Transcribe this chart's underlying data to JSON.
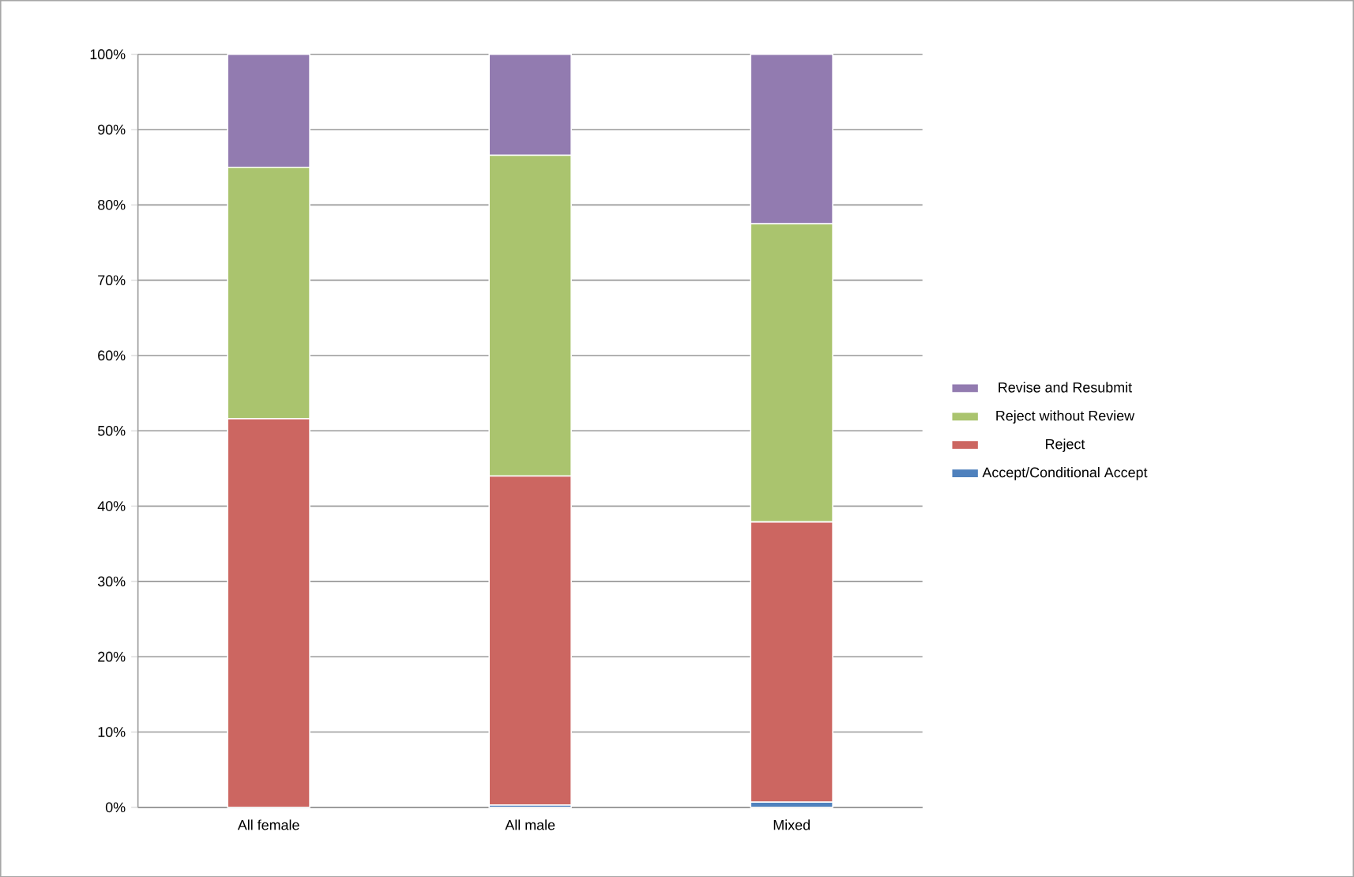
{
  "chart_data": {
    "type": "bar",
    "stacked": true,
    "categories": [
      "All female",
      "All male",
      "Mixed"
    ],
    "series": [
      {
        "name": "Accept/Conditional Accept",
        "color": "#4f81bd",
        "values": [
          0,
          0.3,
          0.7
        ]
      },
      {
        "name": "Reject",
        "color": "#cc6661",
        "values": [
          51.6,
          43.7,
          37.2
        ]
      },
      {
        "name": "Reject without Review",
        "color": "#aac46e",
        "values": [
          33.4,
          42.6,
          39.6
        ]
      },
      {
        "name": "Revise and Resubmit",
        "color": "#927bb0",
        "values": [
          15.0,
          13.4,
          22.5
        ]
      }
    ],
    "ylim": [
      0,
      100
    ],
    "yticks": [
      {
        "value": 0,
        "label": "0%"
      },
      {
        "value": 10,
        "label": "10%"
      },
      {
        "value": 20,
        "label": "20%"
      },
      {
        "value": 30,
        "label": "30%"
      },
      {
        "value": 40,
        "label": "40%"
      },
      {
        "value": 50,
        "label": "50%"
      },
      {
        "value": 60,
        "label": "60%"
      },
      {
        "value": 70,
        "label": "70%"
      },
      {
        "value": 80,
        "label": "80%"
      },
      {
        "value": 90,
        "label": "90%"
      },
      {
        "value": 100,
        "label": "100%"
      }
    ],
    "grid": "y",
    "legend": "right"
  }
}
